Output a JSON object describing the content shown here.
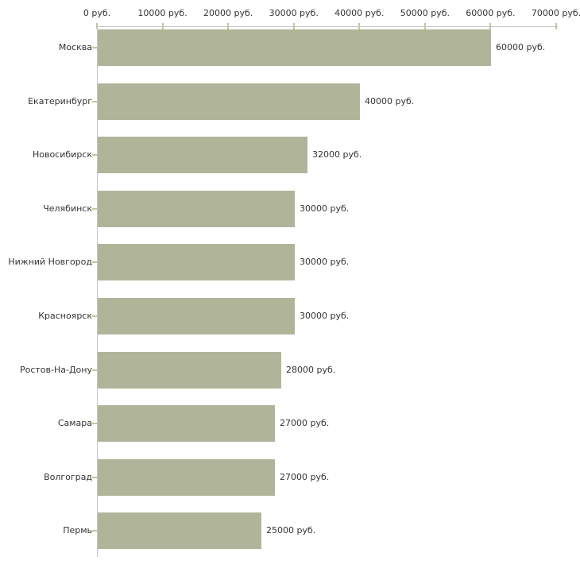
{
  "chart_data": {
    "type": "bar",
    "orientation": "horizontal",
    "title": "",
    "xlabel": "",
    "ylabel": "",
    "unit": "руб.",
    "categories": [
      "Москва",
      "Екатеринбург",
      "Новосибирск",
      "Челябинск",
      "Нижний Новгород",
      "Красноярск",
      "Ростов-На-Дону",
      "Самара",
      "Волгоград",
      "Пермь"
    ],
    "values": [
      60000,
      40000,
      32000,
      30000,
      30000,
      30000,
      28000,
      27000,
      27000,
      25000
    ],
    "value_labels": [
      "60000 руб.",
      "40000 руб.",
      "32000 руб.",
      "30000 руб.",
      "30000 руб.",
      "30000 руб.",
      "28000 руб.",
      "27000 руб.",
      "27000 руб.",
      "25000 руб."
    ],
    "x_axis_tick_labels": [
      "0 руб.",
      "10000 руб.",
      "20000 руб.",
      "30000 руб.",
      "40000 руб.",
      "50000 руб.",
      "60000 руб.",
      "70000 руб."
    ],
    "x_axis_tick_values": [
      0,
      10000,
      20000,
      30000,
      40000,
      50000,
      60000,
      70000
    ],
    "xlim": [
      0,
      70000
    ],
    "grid": false,
    "legend": false,
    "colors": {
      "bar": "#b0b59a",
      "axis_line": "#c6c6c6",
      "tick": "#c9c39b",
      "text": "#333333",
      "background": "#ffffff"
    }
  }
}
